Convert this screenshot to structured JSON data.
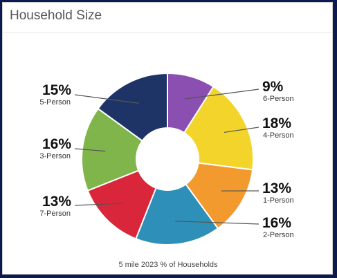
{
  "header": {
    "title": "Household Size"
  },
  "chart_data": {
    "type": "pie",
    "donut": true,
    "caption": "5 mile 2023 % of Households",
    "slices": [
      {
        "label": "6-Person",
        "value": 9,
        "display": "9%",
        "color": "#8a4fb0"
      },
      {
        "label": "4-Person",
        "value": 18,
        "display": "18%",
        "color": "#f2d42b"
      },
      {
        "label": "1-Person",
        "value": 13,
        "display": "13%",
        "color": "#f29a2e"
      },
      {
        "label": "2-Person",
        "value": 16,
        "display": "16%",
        "color": "#2e8fb8"
      },
      {
        "label": "7-Person",
        "value": 13,
        "display": "13%",
        "color": "#d9263a"
      },
      {
        "label": "3-Person",
        "value": 16,
        "display": "16%",
        "color": "#7fb54a"
      },
      {
        "label": "5-Person",
        "value": 15,
        "display": "15%",
        "color": "#1f3466"
      }
    ]
  }
}
